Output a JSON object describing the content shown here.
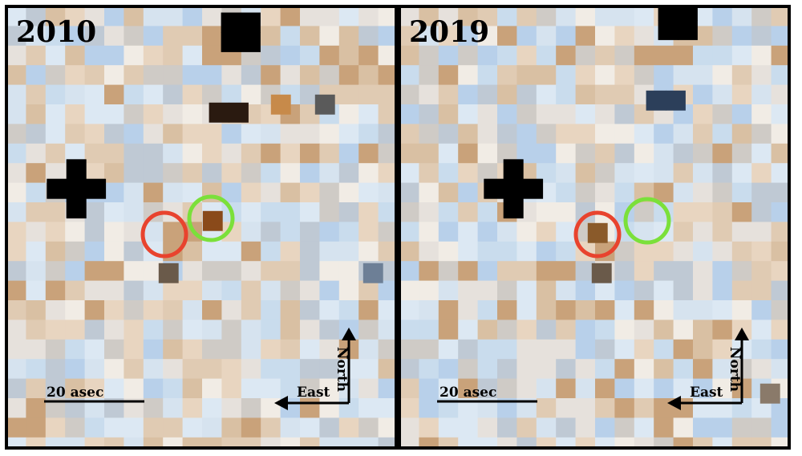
{
  "panels": [
    {
      "year": "2010",
      "scale_label": "20 asec",
      "north": "North",
      "east": "East"
    },
    {
      "year": "2019",
      "scale_label": "20 asec",
      "north": "North",
      "east": "East"
    }
  ]
}
